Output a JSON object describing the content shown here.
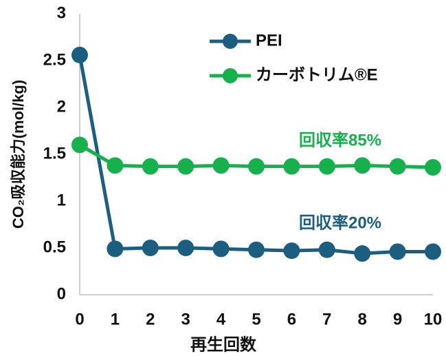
{
  "chart_data": {
    "type": "line",
    "x_label": "再生回数",
    "y_label": "CO₂吸収能力(mol/kg)",
    "x": [
      0,
      1,
      2,
      3,
      4,
      5,
      6,
      7,
      8,
      9,
      10
    ],
    "xlim": [
      0,
      10
    ],
    "xticks": [
      0,
      1,
      2,
      3,
      4,
      5,
      6,
      7,
      8,
      9,
      10
    ],
    "ylim": [
      0,
      3
    ],
    "yticks": [
      0,
      0.5,
      1,
      1.5,
      2,
      2.5,
      3
    ],
    "grid": false,
    "legend": "top",
    "series": [
      {
        "name": "PEI",
        "color": "#1b5e80",
        "values": [
          2.56,
          0.49,
          0.5,
          0.5,
          0.49,
          0.48,
          0.47,
          0.48,
          0.44,
          0.46,
          0.46
        ]
      },
      {
        "name": "カーボトリム®E",
        "color": "#16b14d",
        "values": [
          1.6,
          1.38,
          1.37,
          1.37,
          1.38,
          1.37,
          1.37,
          1.37,
          1.38,
          1.37,
          1.36
        ]
      }
    ],
    "annotations": [
      {
        "text": "回収率85%",
        "color": "#16b14d"
      },
      {
        "text": "回収率20%",
        "color": "#1b5e80"
      }
    ]
  }
}
